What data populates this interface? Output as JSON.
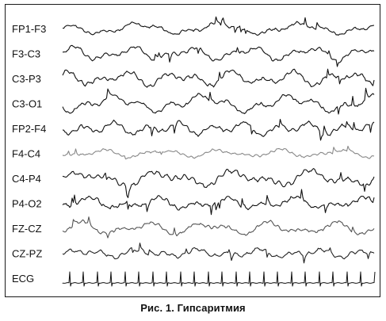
{
  "figure": {
    "caption": "Рис. 1. Гипсаритмия",
    "channels": [
      {
        "label": "FP1-F3",
        "trace_color": "#111111",
        "seed": 11,
        "amplitude": 0.9
      },
      {
        "label": "F3-C3",
        "trace_color": "#111111",
        "seed": 23,
        "amplitude": 1.0
      },
      {
        "label": "C3-P3",
        "trace_color": "#111111",
        "seed": 37,
        "amplitude": 1.1
      },
      {
        "label": "C3-O1",
        "trace_color": "#111111",
        "seed": 41,
        "amplitude": 1.2
      },
      {
        "label": "FP2-F4",
        "trace_color": "#111111",
        "seed": 53,
        "amplitude": 1.1
      },
      {
        "label": "F4-C4",
        "trace_color": "#888888",
        "seed": 67,
        "amplitude": 0.7
      },
      {
        "label": "C4-P4",
        "trace_color": "#111111",
        "seed": 79,
        "amplitude": 1.2
      },
      {
        "label": "P4-O2",
        "trace_color": "#111111",
        "seed": 83,
        "amplitude": 1.3
      },
      {
        "label": "FZ-CZ",
        "trace_color": "#555555",
        "seed": 97,
        "amplitude": 1.0
      },
      {
        "label": "CZ-PZ",
        "trace_color": "#222222",
        "seed": 101,
        "amplitude": 0.9
      },
      {
        "label": "ECG",
        "trace_color": "#111111",
        "seed": 0,
        "amplitude": 1.0,
        "type": "ecg"
      }
    ]
  }
}
